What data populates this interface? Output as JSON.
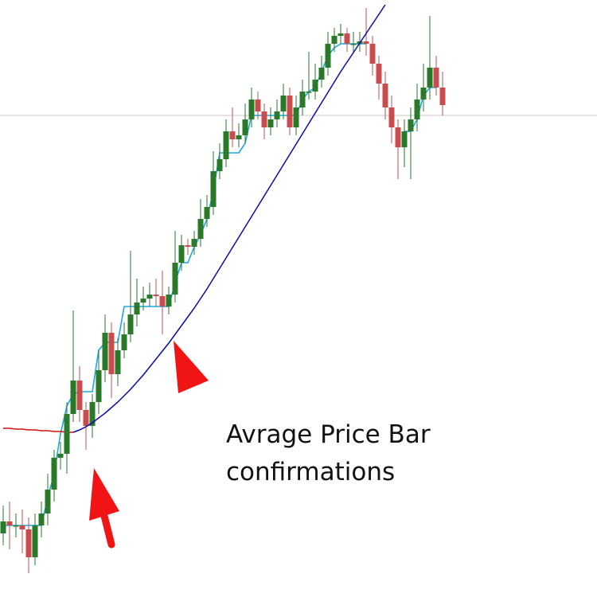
{
  "chart_data": {
    "type": "candlestick",
    "annotations": [
      "Avrage Price Bar",
      "confirmations"
    ],
    "ylim": [
      0,
      770
    ],
    "hline": 625,
    "hline_color": "#c8c8c8",
    "up_color": "#2a7a2a",
    "down_color": "#c94c4c",
    "open": [
      100,
      115,
      110,
      110,
      105,
      70,
      110,
      125,
      155,
      195,
      200,
      250,
      292,
      255,
      235,
      265,
      305,
      352,
      300,
      330,
      350,
      375,
      390,
      395,
      400,
      398,
      385,
      400,
      440,
      462,
      460,
      470,
      495,
      510,
      555,
      570,
      605,
      595,
      600,
      620,
      645,
      630,
      610,
      620,
      630,
      650,
      610,
      635,
      655,
      655,
      670,
      685,
      715,
      725,
      728,
      715,
      715,
      718,
      715,
      690,
      665,
      635,
      610,
      585,
      605,
      620,
      645,
      660,
      685,
      660
    ],
    "high": [
      135,
      140,
      125,
      130,
      120,
      125,
      140,
      175,
      205,
      215,
      265,
      380,
      310,
      265,
      275,
      330,
      375,
      365,
      345,
      365,
      455,
      420,
      410,
      415,
      420,
      430,
      410,
      480,
      475,
      470,
      480,
      520,
      525,
      580,
      590,
      620,
      635,
      615,
      640,
      660,
      655,
      640,
      635,
      645,
      665,
      660,
      650,
      670,
      705,
      690,
      700,
      730,
      735,
      740,
      735,
      730,
      730,
      760,
      725,
      700,
      680,
      650,
      620,
      620,
      635,
      665,
      690,
      750,
      700,
      680
    ],
    "low": [
      85,
      80,
      95,
      75,
      50,
      60,
      95,
      110,
      140,
      180,
      175,
      240,
      240,
      205,
      220,
      250,
      290,
      270,
      285,
      320,
      340,
      360,
      380,
      385,
      385,
      350,
      375,
      390,
      430,
      450,
      450,
      460,
      485,
      500,
      545,
      560,
      585,
      585,
      590,
      610,
      620,
      595,
      600,
      610,
      620,
      600,
      600,
      625,
      645,
      645,
      660,
      675,
      705,
      715,
      705,
      705,
      705,
      700,
      675,
      645,
      620,
      590,
      545,
      560,
      545,
      605,
      630,
      645,
      650,
      625
    ],
    "close": [
      115,
      110,
      110,
      105,
      70,
      110,
      125,
      155,
      195,
      200,
      250,
      292,
      255,
      235,
      265,
      305,
      352,
      300,
      330,
      350,
      375,
      390,
      395,
      400,
      398,
      385,
      400,
      440,
      462,
      460,
      470,
      495,
      510,
      555,
      570,
      605,
      595,
      600,
      620,
      645,
      630,
      610,
      620,
      630,
      650,
      610,
      635,
      655,
      655,
      670,
      685,
      715,
      725,
      728,
      715,
      715,
      718,
      715,
      690,
      665,
      635,
      610,
      585,
      605,
      620,
      645,
      660,
      685,
      660,
      638
    ],
    "series": [
      {
        "color": "#d01010",
        "values": [
          232,
          232,
          231,
          231,
          230,
          230,
          229,
          229,
          228,
          228,
          227,
          227,
          null,
          null,
          null,
          null,
          null,
          null,
          null,
          null,
          null,
          null,
          null,
          null,
          null,
          null,
          null,
          null,
          null,
          null,
          null,
          null,
          null,
          null,
          null,
          null,
          null,
          null,
          null,
          null,
          null,
          null,
          null,
          null,
          null,
          null,
          null,
          null,
          null,
          null,
          null,
          null,
          null,
          null,
          null,
          null,
          null,
          null,
          null,
          null,
          null,
          null,
          null,
          null,
          null,
          null,
          null,
          null,
          null,
          null
        ]
      },
      {
        "color": "#0a0aa8",
        "values": [
          null,
          null,
          null,
          null,
          null,
          null,
          null,
          null,
          null,
          null,
          null,
          227,
          230,
          234,
          239,
          245,
          251,
          258,
          265,
          273,
          281,
          290,
          299,
          309,
          319,
          329,
          339,
          350,
          361,
          372,
          383,
          395,
          407,
          420,
          433,
          446,
          459,
          472,
          485,
          498,
          511,
          524,
          537,
          550,
          563,
          576,
          589,
          602,
          615,
          628,
          641,
          654,
          667,
          680,
          692,
          704,
          716,
          728,
          740,
          752,
          764,
          null,
          null,
          null,
          null,
          null,
          null,
          null,
          null,
          null
        ]
      },
      {
        "color": "#1aa8e0",
        "values": [
          110,
          110,
          110,
          110,
          110,
          110,
          110,
          145,
          175,
          225,
          260,
          275,
          278,
          278,
          278,
          330,
          340,
          340,
          340,
          385,
          385,
          385,
          385,
          385,
          385,
          385,
          385,
          415,
          440,
          440,
          460,
          475,
          495,
          530,
          578,
          578,
          578,
          578,
          590,
          625,
          625,
          625,
          625,
          625,
          625,
          625,
          625,
          645,
          655,
          660,
          680,
          700,
          710,
          715,
          715,
          715,
          715,
          715,
          null,
          null,
          null,
          null,
          null,
          605,
          605,
          620,
          650,
          660,
          660,
          null
        ]
      }
    ]
  }
}
